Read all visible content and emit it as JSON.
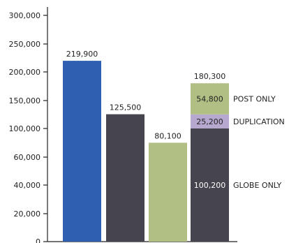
{
  "chart_data": {
    "type": "bar",
    "title": "",
    "xlabel": "",
    "ylabel": "",
    "y_ticks": [
      {
        "value": 0,
        "label": "0"
      },
      {
        "value": 20000,
        "label": "20,000"
      },
      {
        "value": 40000,
        "label": "40,000"
      },
      {
        "value": 60000,
        "label": "60,000"
      },
      {
        "value": 100000,
        "label": "100,000"
      },
      {
        "value": 150000,
        "label": "150,000"
      },
      {
        "value": 200000,
        "label": "200,000"
      },
      {
        "value": 250000,
        "label": "250,000"
      },
      {
        "value": 300000,
        "label": "300,000"
      }
    ],
    "bars": [
      {
        "value": 219900,
        "label": "219,900",
        "color": "#2f5fb0"
      },
      {
        "value": 125500,
        "label": "125,500",
        "color": "#46444f"
      },
      {
        "value": 80100,
        "label": "80,100",
        "color": "#b1bf84"
      }
    ],
    "stacked_bar": {
      "total_label": "180,300",
      "segments": [
        {
          "name": "GLOBE ONLY",
          "value": 100200,
          "label": "100,200",
          "color": "#46444f"
        },
        {
          "name": "DUPLICATION",
          "value": 25200,
          "label": "25,200",
          "color": "#b6a8cf"
        },
        {
          "name": "POST ONLY",
          "value": 54800,
          "label": "54,800",
          "color": "#b1bf84"
        }
      ]
    },
    "grid": false,
    "legend": "right-of-stacked-bar"
  }
}
